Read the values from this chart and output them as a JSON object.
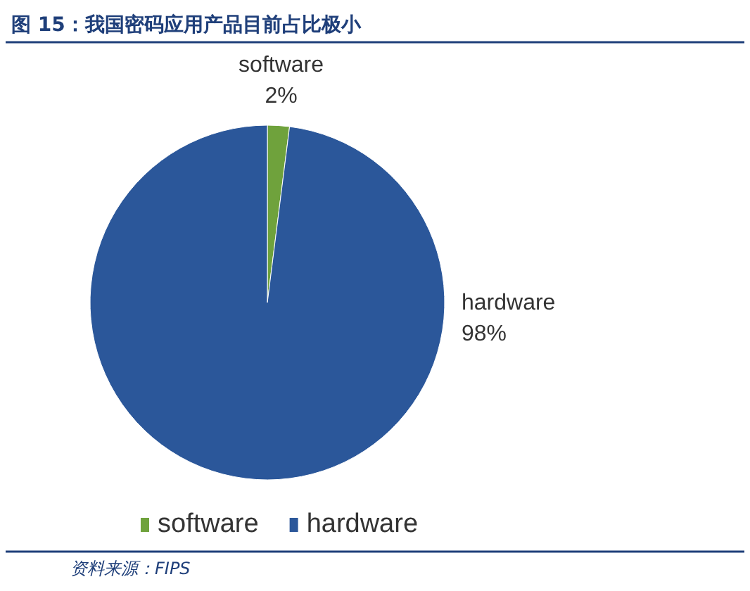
{
  "chart_data": {
    "type": "pie",
    "title": "图 15：我国密码应用产品目前占比极小",
    "categories": [
      "software",
      "hardware"
    ],
    "values": [
      2,
      98
    ],
    "colors": [
      "#6fa23c",
      "#2b579a"
    ],
    "value_labels": [
      "2%",
      "98%"
    ],
    "legend": "bottom",
    "annotations": [
      "资料来源：FIPS"
    ]
  }
}
